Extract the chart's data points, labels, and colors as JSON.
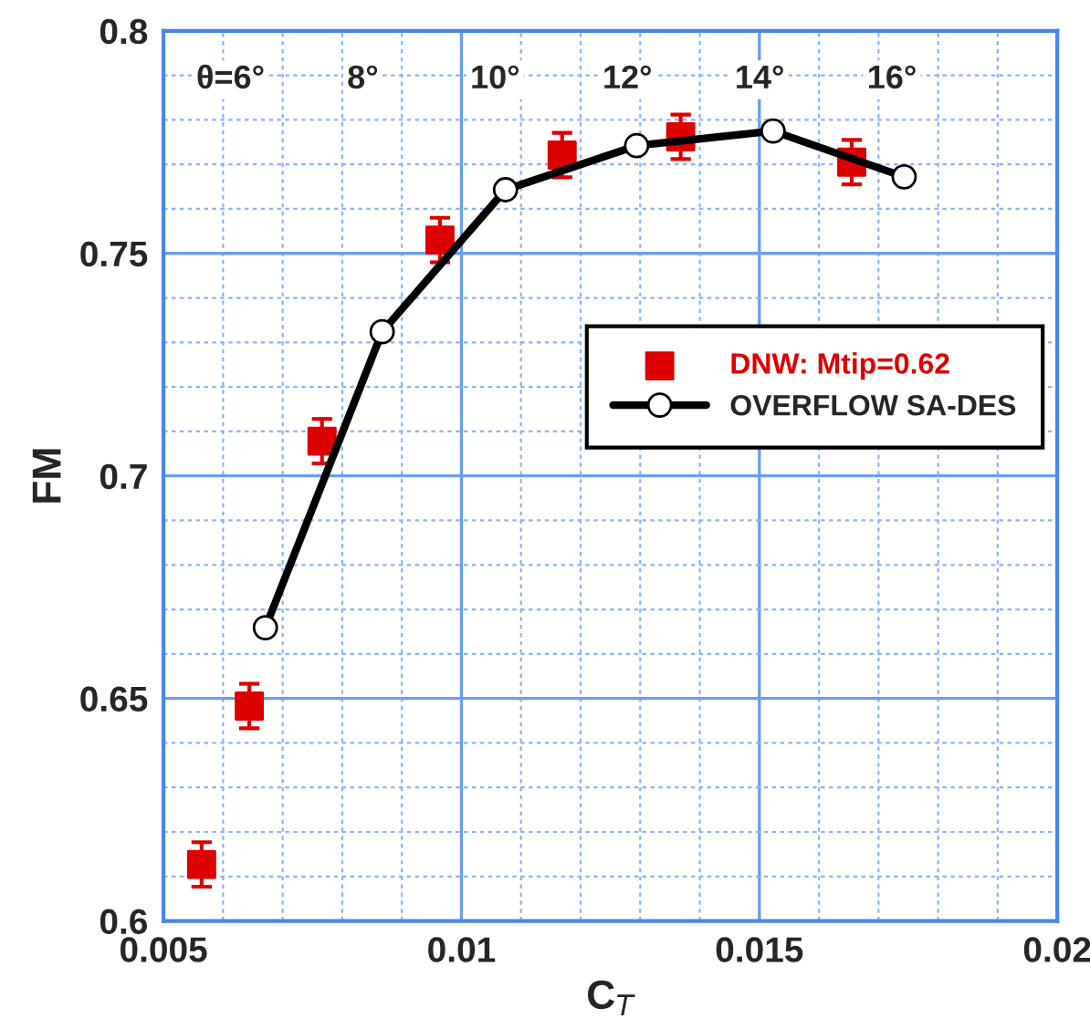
{
  "chart_data": {
    "type": "scatter",
    "xlabel": "C$_{T}$",
    "ylabel": "FM",
    "xlim": [
      0.005,
      0.02
    ],
    "xticks": [
      0.005,
      {
        "value": 0.006,
        "label": null
      },
      {
        "value": 0.007,
        "label": null
      },
      {
        "value": 0.008,
        "label": null
      },
      {
        "value": 0.009,
        "label": null
      },
      0.01,
      {
        "value": 0.011,
        "label": null
      },
      {
        "value": 0.012,
        "label": null
      },
      {
        "value": 0.013,
        "label": null
      },
      {
        "value": 0.014,
        "label": null
      },
      0.015,
      {
        "value": 0.016,
        "label": null
      },
      {
        "value": 0.017,
        "label": null
      },
      {
        "value": 0.018,
        "label": null
      },
      {
        "value": 0.019,
        "label": null
      },
      0.02
    ],
    "ylim": [
      0.6,
      0.8
    ],
    "yticks": [
      0.6,
      {
        "value": 0.61,
        "label": null
      },
      {
        "value": 0.62,
        "label": null
      },
      {
        "value": 0.63,
        "label": null
      },
      {
        "value": 0.64,
        "label": null
      },
      0.65,
      {
        "value": 0.66,
        "label": null
      },
      {
        "value": 0.67,
        "label": null
      },
      {
        "value": 0.68,
        "label": null
      },
      {
        "value": 0.69,
        "label": null
      },
      0.7,
      {
        "value": 0.71,
        "label": null
      },
      {
        "value": 0.72,
        "label": null
      },
      {
        "value": 0.73,
        "label": null
      },
      {
        "value": 0.74,
        "label": null
      },
      0.75,
      {
        "value": 0.76,
        "label": null
      },
      {
        "value": 0.77,
        "label": null
      },
      {
        "value": 0.78,
        "label": null
      },
      {
        "value": 0.79,
        "label": null
      },
      0.8
    ],
    "grid": true,
    "legend": "right",
    "annotations": [
      "θ=6°",
      "8°",
      "10°",
      "12°",
      "14°",
      "16°"
    ],
    "series": [
      {
        "name": "DNW: Mtip=0.62",
        "marker": "square",
        "color": "#dd0000",
        "x": [
          0.00564,
          0.00644,
          0.00766,
          0.00964,
          0.01169,
          0.01368,
          0.01655
        ],
        "values": [
          0.6127,
          0.6483,
          0.7078,
          0.753,
          0.7721,
          0.7762,
          0.7705
        ],
        "errors": [
          0.005,
          0.005,
          0.005,
          0.005,
          0.005,
          0.005,
          0.005
        ]
      },
      {
        "name": "OVERFLOW SA-DES",
        "type": "line",
        "marker": "circle",
        "line_style": "solid",
        "color": "#000000",
        "x": [
          0.00671,
          0.00867,
          0.01074,
          0.01294,
          0.01523,
          0.01743
        ],
        "values": [
          0.6659,
          0.7324,
          0.7643,
          0.7742,
          0.7775,
          0.7672
        ]
      }
    ]
  }
}
